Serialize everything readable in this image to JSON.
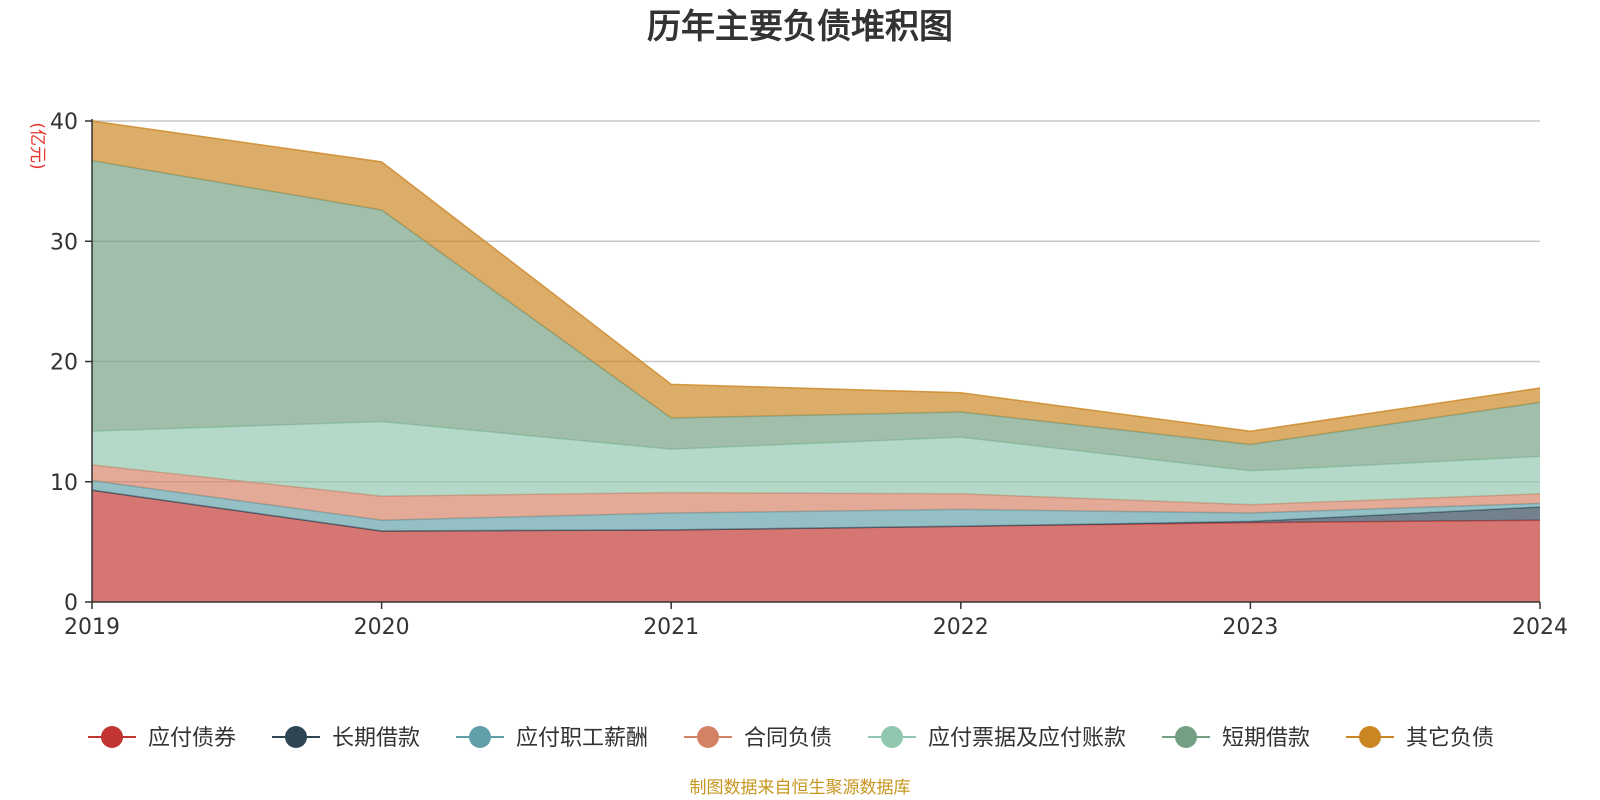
{
  "chart_data": {
    "type": "area",
    "stacked": true,
    "title": "历年主要负债堆积图",
    "ylabel": "(亿元)",
    "xlabel": "",
    "categories": [
      "2019",
      "2020",
      "2021",
      "2022",
      "2023",
      "2024"
    ],
    "ylim": [
      0,
      40
    ],
    "yticks": [
      0,
      10,
      20,
      30,
      40
    ],
    "grid": true,
    "legend_position": "bottom",
    "series": [
      {
        "name": "应付债券",
        "color": "#c23531",
        "values": [
          9.3,
          5.9,
          6.0,
          6.3,
          6.6,
          6.8
        ]
      },
      {
        "name": "长期借款",
        "color": "#2f4554",
        "values": [
          0.0,
          0.0,
          0.0,
          0.0,
          0.1,
          1.1
        ]
      },
      {
        "name": "应付职工薪酬",
        "color": "#61a0a8",
        "values": [
          0.8,
          0.9,
          1.4,
          1.4,
          0.7,
          0.3
        ]
      },
      {
        "name": "合同负债",
        "color": "#d48265",
        "values": [
          1.3,
          2.0,
          1.7,
          1.3,
          0.7,
          0.8
        ]
      },
      {
        "name": "应付票据及应付账款",
        "color": "#91c7ae",
        "values": [
          2.8,
          6.2,
          3.6,
          4.7,
          2.8,
          3.1
        ]
      },
      {
        "name": "短期借款",
        "color": "#749f83",
        "values": [
          22.5,
          17.6,
          2.6,
          2.1,
          2.2,
          4.5
        ]
      },
      {
        "name": "其它负债",
        "color": "#ca8622",
        "values": [
          3.3,
          4.0,
          2.8,
          1.6,
          1.1,
          1.2
        ]
      }
    ]
  },
  "footer": {
    "source": "制图数据来自恒生聚源数据库",
    "source_color": "#c8961e"
  }
}
